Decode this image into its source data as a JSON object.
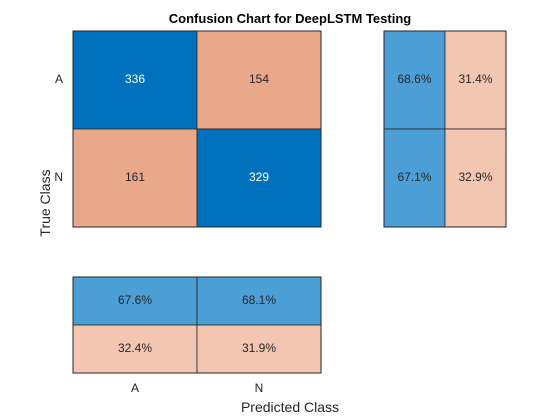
{
  "chart_data": {
    "type": "heatmap",
    "title": "Confusion Chart for DeepLSTM Testing",
    "xlabel": "Predicted Class",
    "ylabel": "True Class",
    "classes": [
      "A",
      "N"
    ],
    "matrix": [
      [
        336,
        154
      ],
      [
        161,
        329
      ]
    ],
    "row_summary": [
      [
        "68.6%",
        "31.4%"
      ],
      [
        "67.1%",
        "32.9%"
      ]
    ],
    "column_summary": [
      [
        "67.6%",
        "68.1%"
      ],
      [
        "32.4%",
        "31.9%"
      ]
    ]
  },
  "colors": {
    "correct_strong": "#0072BD",
    "incorrect_strong": "#EAA88B",
    "correct_summary": "#4C9FD6",
    "incorrect_summary": "#F3C6B2",
    "text_light": "#FFFFFF",
    "text_dark": "#262626"
  }
}
